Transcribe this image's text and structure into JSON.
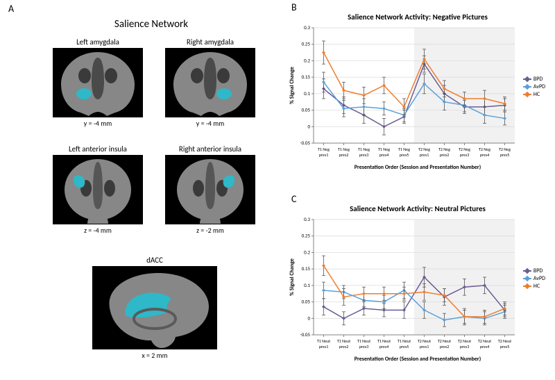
{
  "panel_labels": {
    "A": "A",
    "B": "B",
    "C": "C"
  },
  "panelA": {
    "title": "Salience Network",
    "regions": [
      {
        "key": "amyg-L",
        "label": "Left amygdala",
        "coord": "y = -4 mm"
      },
      {
        "key": "amyg-R",
        "label": "Right amygdala",
        "coord": "y = -4 mm"
      },
      {
        "key": "ins-L",
        "label": "Left anterior insula",
        "coord": "z = -4 mm"
      },
      {
        "key": "ins-R",
        "label": "Right anterior insula",
        "coord": "z = -2 mm"
      },
      {
        "key": "dacc",
        "label": "dACC",
        "coord": "x = 2 mm"
      }
    ],
    "roi_color": "#2eb8c8",
    "brain_gray": "#8f8f8f",
    "brain_dark": "#3a3a3a"
  },
  "charts_common": {
    "type": "line",
    "ylabel": "% Signal Change",
    "xlabel": "Presentation Order (Session and Presentation Number)",
    "ylim": [
      -0.05,
      0.3
    ],
    "yticks": [
      -0.05,
      0,
      0.05,
      0.1,
      0.15,
      0.2,
      0.25,
      0.3
    ],
    "grid_color": "#d9d9d9",
    "axis_color": "#808080",
    "background_color": "#ffffff",
    "shade_color": "#f1f1f1",
    "shade_range": [
      5.5,
      10.5
    ],
    "series_meta": [
      {
        "name": "BPD",
        "color": "#6b5b95",
        "marker": "diamond"
      },
      {
        "name": "AvPD",
        "color": "#5aa0d8",
        "marker": "diamond"
      },
      {
        "name": "HC",
        "color": "#ed7d31",
        "marker": "diamond"
      }
    ],
    "line_width": 1.5,
    "marker_size": 5,
    "errorbar_color": "#555555",
    "title_fontsize": 11,
    "label_fontsize": 8,
    "tick_fontsize": 7
  },
  "chartB": {
    "title": "Salience Network Activity: Negative Pictures",
    "xticklabels": [
      "T1 Neg pres1",
      "T1 Neg pres2",
      "T1 Neg pres3",
      "T1 Neg pres4",
      "T1 Neg pres5",
      "T2 Neg pres1",
      "T2 Neg pres2",
      "T2 Neg pres3",
      "T2 Neg pres4",
      "T2 Neg pres5"
    ],
    "series": {
      "BPD": {
        "y": [
          0.115,
          0.065,
          0.035,
          0.0,
          0.03,
          0.19,
          0.1,
          0.06,
          0.06,
          0.065
        ],
        "err": [
          0.03,
          0.025,
          0.025,
          0.025,
          0.02,
          0.025,
          0.025,
          0.02,
          0.025,
          0.02
        ]
      },
      "AvPD": {
        "y": [
          0.135,
          0.055,
          0.06,
          0.055,
          0.035,
          0.13,
          0.075,
          0.065,
          0.035,
          0.025
        ],
        "err": [
          0.03,
          0.025,
          0.025,
          0.02,
          0.02,
          0.03,
          0.025,
          0.02,
          0.025,
          0.02
        ]
      },
      "HC": {
        "y": [
          0.225,
          0.11,
          0.095,
          0.125,
          0.06,
          0.205,
          0.115,
          0.085,
          0.085,
          0.07
        ],
        "err": [
          0.035,
          0.025,
          0.025,
          0.025,
          0.025,
          0.03,
          0.025,
          0.02,
          0.025,
          0.02
        ]
      }
    }
  },
  "chartC": {
    "title": "Salience Network Activity: Neutral Pictures",
    "xticklabels": [
      "T1 Neut pres1",
      "T1 Neut pres2",
      "T1 Neut pres3",
      "T1 Neut pres4",
      "T1 Neut pres5",
      "T2 Neut pres1",
      "T2 Neut pres2",
      "T2 Neut pres3",
      "T2 Neut pres4",
      "T2 Neut pres5"
    ],
    "series": {
      "BPD": {
        "y": [
          0.035,
          0.0,
          0.03,
          0.025,
          0.025,
          0.125,
          0.065,
          0.095,
          0.1,
          0.025
        ],
        "err": [
          0.025,
          0.02,
          0.02,
          0.02,
          0.025,
          0.03,
          0.025,
          0.025,
          0.025,
          0.02
        ]
      },
      "AvPD": {
        "y": [
          0.085,
          0.08,
          0.055,
          0.05,
          0.085,
          0.025,
          -0.005,
          0.005,
          0.0,
          0.02
        ],
        "err": [
          0.025,
          0.02,
          0.02,
          0.02,
          0.025,
          0.025,
          0.02,
          0.025,
          0.02,
          0.02
        ]
      },
      "HC": {
        "y": [
          0.16,
          0.065,
          0.075,
          0.075,
          0.075,
          0.08,
          0.07,
          0.005,
          0.005,
          0.03
        ],
        "err": [
          0.03,
          0.025,
          0.02,
          0.02,
          0.02,
          0.025,
          0.02,
          0.02,
          0.02,
          0.02
        ]
      }
    }
  }
}
